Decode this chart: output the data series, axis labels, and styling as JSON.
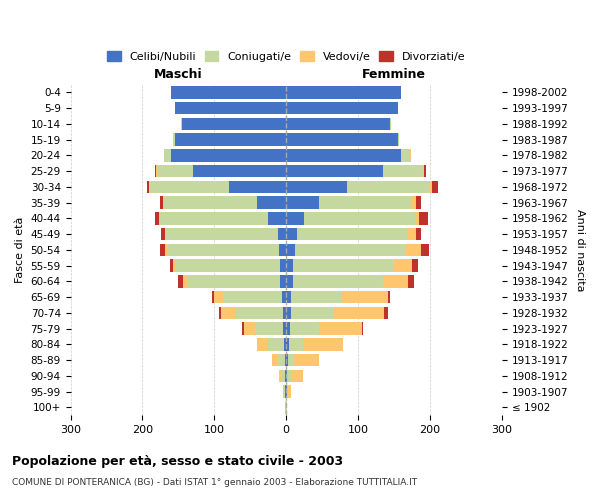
{
  "age_groups": [
    "100+",
    "95-99",
    "90-94",
    "85-89",
    "80-84",
    "75-79",
    "70-74",
    "65-69",
    "60-64",
    "55-59",
    "50-54",
    "45-49",
    "40-44",
    "35-39",
    "30-34",
    "25-29",
    "20-24",
    "15-19",
    "10-14",
    "5-9",
    "0-4"
  ],
  "birth_years": [
    "≤ 1902",
    "1903-1907",
    "1908-1912",
    "1913-1917",
    "1918-1922",
    "1923-1927",
    "1928-1932",
    "1933-1937",
    "1938-1942",
    "1943-1947",
    "1948-1952",
    "1953-1957",
    "1958-1962",
    "1963-1967",
    "1968-1972",
    "1973-1977",
    "1978-1982",
    "1983-1987",
    "1988-1992",
    "1993-1997",
    "1998-2002"
  ],
  "male_celibe": [
    0,
    1,
    1,
    2,
    3,
    4,
    5,
    6,
    8,
    8,
    10,
    12,
    25,
    40,
    80,
    130,
    160,
    155,
    145,
    155,
    160
  ],
  "male_coniugato": [
    1,
    2,
    5,
    10,
    22,
    40,
    65,
    80,
    130,
    145,
    155,
    155,
    150,
    130,
    110,
    50,
    10,
    2,
    1,
    0,
    0
  ],
  "male_vedovo": [
    0,
    1,
    4,
    8,
    15,
    15,
    20,
    15,
    5,
    4,
    3,
    2,
    2,
    2,
    1,
    1,
    0,
    0,
    0,
    0,
    0
  ],
  "male_divorziato": [
    0,
    0,
    0,
    0,
    0,
    2,
    3,
    2,
    8,
    5,
    8,
    5,
    5,
    4,
    3,
    1,
    0,
    0,
    0,
    0,
    0
  ],
  "female_celibe": [
    0,
    1,
    1,
    3,
    4,
    5,
    6,
    7,
    10,
    10,
    12,
    15,
    25,
    45,
    85,
    135,
    160,
    155,
    145,
    155,
    160
  ],
  "female_coniugato": [
    1,
    2,
    5,
    8,
    20,
    40,
    60,
    70,
    125,
    140,
    155,
    155,
    155,
    130,
    115,
    55,
    12,
    2,
    1,
    0,
    0
  ],
  "female_vedovo": [
    0,
    3,
    18,
    35,
    55,
    60,
    70,
    65,
    35,
    25,
    20,
    10,
    5,
    5,
    3,
    2,
    1,
    0,
    0,
    0,
    0
  ],
  "female_divorziato": [
    0,
    0,
    0,
    0,
    0,
    2,
    5,
    3,
    8,
    8,
    12,
    8,
    12,
    8,
    8,
    2,
    0,
    0,
    0,
    0,
    0
  ],
  "color_celibe": "#4472c4",
  "color_coniugato": "#c5d8a0",
  "color_vedovo": "#ffc66d",
  "color_divorziato": "#c0312b",
  "xlim": 300,
  "title": "Popolazione per età, sesso e stato civile - 2003",
  "subtitle": "COMUNE DI PONTERANICA (BG) - Dati ISTAT 1° gennaio 2003 - Elaborazione TUTTITALIA.IT",
  "xlabel_left": "Maschi",
  "xlabel_right": "Femmine",
  "ylabel_left": "Fasce di età",
  "ylabel_right": "Anni di nascita",
  "legend_labels": [
    "Celibi/Nubili",
    "Coniugati/e",
    "Vedovi/e",
    "Divorziati/e"
  ],
  "background_color": "#ffffff"
}
